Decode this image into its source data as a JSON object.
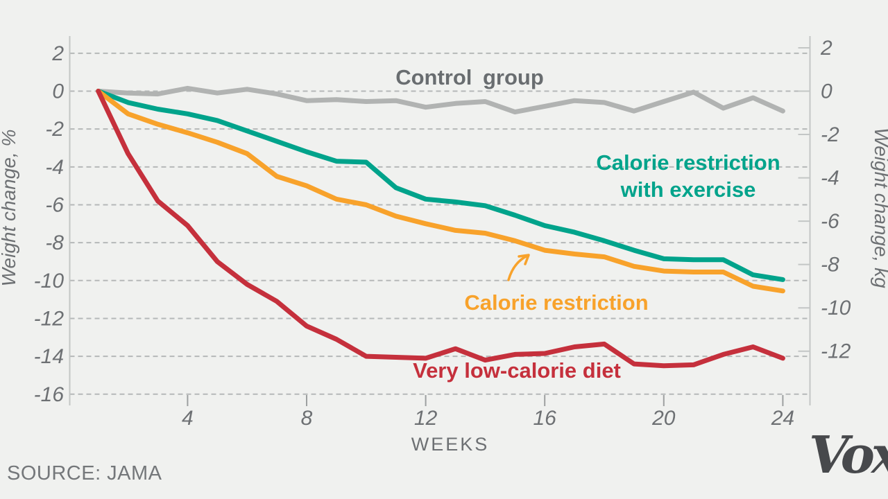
{
  "background": "#f0f1ef",
  "chart_data": {
    "type": "line",
    "x_axis": {
      "label": "WEEKS",
      "ticks": [
        4,
        8,
        12,
        16,
        20,
        24
      ],
      "range": [
        1,
        24
      ]
    },
    "left_axis": {
      "label": "Weight change, %",
      "ticks": [
        2,
        0,
        -2,
        -4,
        -6,
        -8,
        -10,
        -12,
        -14,
        -16
      ],
      "range": [
        2,
        -16
      ]
    },
    "right_axis": {
      "label": "Weight change, kg",
      "ticks": [
        2,
        0,
        -2,
        -4,
        -6,
        -8,
        -10,
        -12
      ],
      "range": [
        2.5,
        -14
      ]
    },
    "grid": {
      "style": "dashed",
      "color": "#b5b8b8",
      "horizontal_at_left_ticks": true
    },
    "weeks": [
      1,
      2,
      3,
      4,
      5,
      6,
      7,
      8,
      9,
      10,
      11,
      12,
      13,
      14,
      15,
      16,
      17,
      18,
      19,
      20,
      21,
      22,
      23,
      24
    ],
    "series": [
      {
        "name": "Control group",
        "color": "#b1b3b2",
        "values": [
          0,
          -0.1,
          -0.15,
          0.15,
          -0.1,
          0.1,
          -0.15,
          -0.5,
          -0.45,
          -0.55,
          -0.5,
          -0.85,
          -0.65,
          -0.55,
          -1.1,
          -0.8,
          -0.5,
          -0.6,
          -1.05,
          -0.55,
          -0.05,
          -0.9,
          -0.35,
          -1.05
        ]
      },
      {
        "name": "Calorie restriction with exercise",
        "color": "#00a38b",
        "values": [
          0,
          -0.6,
          -0.95,
          -1.2,
          -1.55,
          -2.1,
          -2.65,
          -3.2,
          -3.7,
          -3.75,
          -5.1,
          -5.7,
          -5.85,
          -6.05,
          -6.55,
          -7.1,
          -7.45,
          -7.9,
          -8.4,
          -8.85,
          -8.9,
          -8.9,
          -9.7,
          -9.95
        ]
      },
      {
        "name": "Calorie restriction",
        "color": "#f8a22b",
        "values": [
          0,
          -1.2,
          -1.75,
          -2.2,
          -2.7,
          -3.3,
          -4.5,
          -5.0,
          -5.7,
          -6.0,
          -6.6,
          -7.0,
          -7.35,
          -7.5,
          -7.9,
          -8.4,
          -8.6,
          -8.75,
          -9.25,
          -9.5,
          -9.55,
          -9.55,
          -10.3,
          -10.55
        ]
      },
      {
        "name": "Very low-calorie diet",
        "color": "#c5303c",
        "values": [
          0,
          -3.3,
          -5.8,
          -7.1,
          -9.0,
          -10.2,
          -11.1,
          -12.4,
          -13.1,
          -14.0,
          -14.05,
          -14.1,
          -13.6,
          -14.2,
          -13.9,
          -13.85,
          -13.5,
          -13.35,
          -14.4,
          -14.5,
          -14.45,
          -13.9,
          -13.5,
          -14.1
        ]
      }
    ]
  },
  "labels": {
    "control": "Control group",
    "cr_exercise_line1": "Calorie restriction",
    "cr_exercise_line2": "with exercise",
    "cr": "Calorie restriction",
    "vlcd": "Very low-calorie diet"
  },
  "annotations": {
    "arrow_color": "#f8a22b"
  },
  "footer": {
    "source": "SOURCE: JAMA",
    "logo": "Vox"
  }
}
